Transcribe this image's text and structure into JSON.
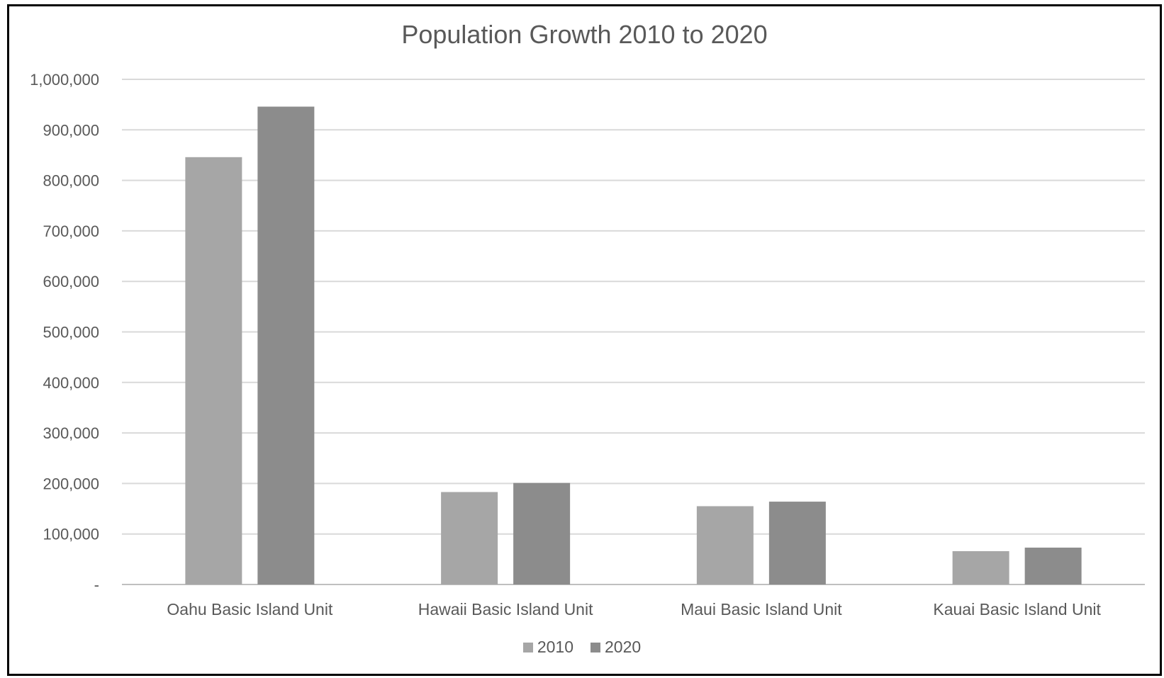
{
  "chart_data": {
    "type": "bar",
    "title": "Population Growth 2010 to 2020",
    "xlabel": "",
    "ylabel": "",
    "categories": [
      "Oahu Basic Island Unit",
      "Hawaii Basic Island Unit",
      "Maui Basic Island Unit",
      "Kauai Basic Island Unit"
    ],
    "series": [
      {
        "name": "2010",
        "color": "#a6a6a6",
        "values": [
          846000,
          183000,
          155000,
          66000
        ]
      },
      {
        "name": "2020",
        "color": "#8c8c8c",
        "values": [
          946000,
          201000,
          164000,
          73000
        ]
      }
    ],
    "ylim": [
      0,
      1000000
    ],
    "yticks": [
      "-",
      "100,000",
      "200,000",
      "300,000",
      "400,000",
      "500,000",
      "600,000",
      "700,000",
      "800,000",
      "900,000",
      "1,000,000"
    ],
    "grid": true,
    "legend_position": "bottom"
  }
}
